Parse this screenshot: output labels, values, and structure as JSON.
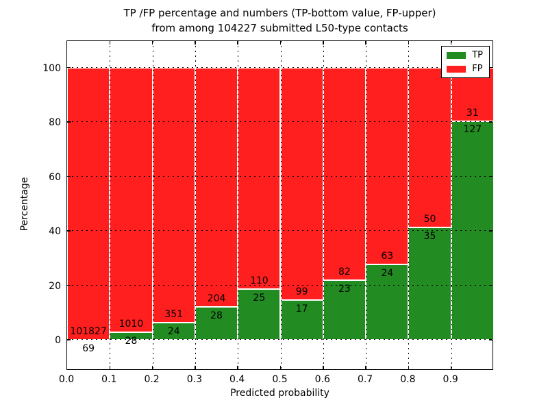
{
  "figure": {
    "title_line1": "TP /FP percentage and numbers (TP-bottom value, FP-upper)",
    "title_line2": "from among 104227 submitted L50-type contacts",
    "xlabel": "Predicted probability",
    "ylabel": "Percentage"
  },
  "legend": {
    "position": "upper right",
    "items": [
      {
        "label": "TP",
        "color": "#228b22"
      },
      {
        "label": "FP",
        "color": "#ff1f1f"
      }
    ]
  },
  "chart_data": {
    "type": "bar",
    "stacked": true,
    "normalized_to_percent": true,
    "title": "TP /FP percentage and numbers (TP-bottom value, FP-upper) from among 104227 submitted L50-type contacts",
    "xlabel": "Predicted probability",
    "ylabel": "Percentage",
    "total_contacts": 104227,
    "bin_start": [
      0.0,
      0.1,
      0.2,
      0.3,
      0.4,
      0.5,
      0.6,
      0.7,
      0.8,
      0.9
    ],
    "bin_width": 0.1,
    "series": [
      {
        "name": "TP",
        "color": "#228b22",
        "counts": [
          69,
          28,
          24,
          28,
          25,
          17,
          23,
          24,
          35,
          127
        ]
      },
      {
        "name": "FP",
        "color": "#ff1f1f",
        "counts": [
          101827,
          1010,
          351,
          204,
          110,
          99,
          82,
          63,
          50,
          31
        ]
      }
    ],
    "tp_percent": [
      0.07,
      2.7,
      6.4,
      12.07,
      18.52,
      14.66,
      21.9,
      27.59,
      41.18,
      80.38
    ],
    "xticks": [
      "0.0",
      "0.1",
      "0.2",
      "0.3",
      "0.4",
      "0.5",
      "0.6",
      "0.7",
      "0.8",
      "0.9"
    ],
    "yticks": [
      0,
      20,
      40,
      60,
      80,
      100
    ],
    "xlim": [
      0.0,
      1.0
    ],
    "ylim": [
      -10.8,
      110.3
    ],
    "grid": true,
    "grid_style": "dotted",
    "grid_above_bars": true,
    "legend_position": "upper right"
  }
}
